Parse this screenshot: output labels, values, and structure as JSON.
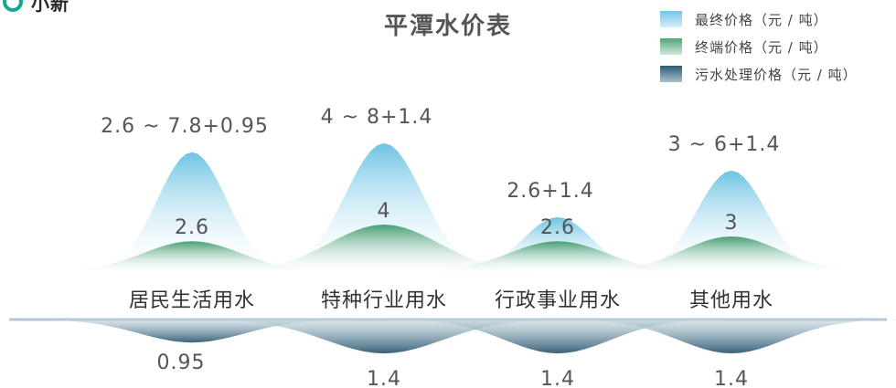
{
  "logo_text": "小新",
  "chart_data": {
    "type": "area",
    "title": "平潭水价表",
    "categories": [
      "居民生活用水",
      "特种行业用水",
      "行政事业用水",
      "其他用水"
    ],
    "series": [
      {
        "name": "最终价格（元 / 吨）",
        "values": [
          8.75,
          9.4,
          4.0,
          7.4
        ],
        "labels": [
          "2.6 ~ 7.8+0.95",
          "4 ~ 8+1.4",
          "2.6+1.4",
          "3 ~ 6+1.4"
        ]
      },
      {
        "name": "终端价格（元 / 吨）",
        "values": [
          2.6,
          4,
          2.6,
          3
        ],
        "labels": [
          "2.6",
          "4",
          "2.6",
          "3"
        ]
      },
      {
        "name": "污水处理价格（元 / 吨）",
        "values": [
          0.95,
          1.4,
          1.4,
          1.4
        ],
        "labels": [
          "0.95",
          "1.4",
          "1.4",
          "1.4"
        ]
      }
    ],
    "colors": {
      "final": "#6cc3e3",
      "terminal": "#3f9a6a",
      "sewage": "#2f5a73",
      "logo": "#13a891"
    }
  }
}
